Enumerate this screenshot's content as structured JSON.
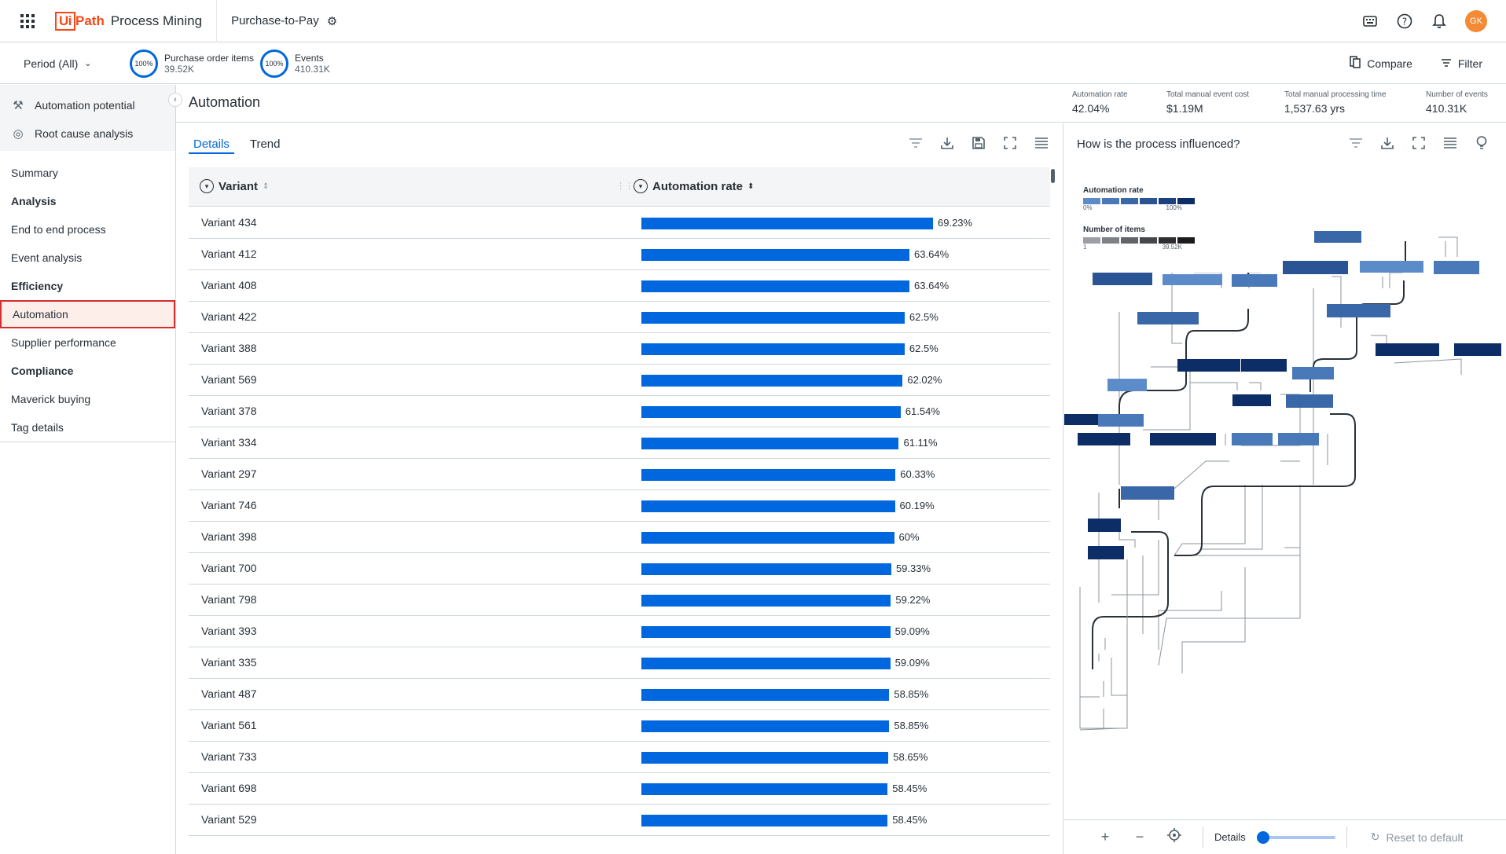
{
  "topbar": {
    "logo_ui": "Ui",
    "logo_path": "Path",
    "product": "Process Mining",
    "app_name": "Purchase-to-Pay",
    "avatar_initials": "GK"
  },
  "filterbar": {
    "period_label": "Period (All)",
    "metrics": [
      {
        "pct": "100%",
        "label": "Purchase order items",
        "value": "39.52K"
      },
      {
        "pct": "100%",
        "label": "Events",
        "value": "410.31K"
      }
    ],
    "compare_label": "Compare",
    "filter_label": "Filter"
  },
  "leftnav": {
    "top_items": [
      {
        "label": "Automation potential",
        "icon": "lever-icon"
      },
      {
        "label": "Root cause analysis",
        "icon": "target-icon"
      }
    ],
    "items": [
      {
        "label": "Summary",
        "type": "link"
      },
      {
        "label": "Analysis",
        "type": "head"
      },
      {
        "label": "End to end process",
        "type": "link"
      },
      {
        "label": "Event analysis",
        "type": "link"
      },
      {
        "label": "Efficiency",
        "type": "head"
      },
      {
        "label": "Automation",
        "type": "link",
        "active": true
      },
      {
        "label": "Supplier performance",
        "type": "link"
      },
      {
        "label": "Compliance",
        "type": "head"
      },
      {
        "label": "Maverick buying",
        "type": "link"
      },
      {
        "label": "Tag details",
        "type": "link"
      }
    ]
  },
  "page": {
    "title": "Automation",
    "kpis": [
      {
        "label": "Automation rate",
        "value": "42.04%"
      },
      {
        "label": "Total manual event cost",
        "value": "$1.19M"
      },
      {
        "label": "Total manual processing time",
        "value": "1,537.63 yrs"
      },
      {
        "label": "Number of events",
        "value": "410.31K"
      }
    ]
  },
  "table": {
    "tabs": [
      "Details",
      "Trend"
    ],
    "columns": [
      "Variant",
      "Automation rate"
    ],
    "rows": [
      {
        "name": "Variant 434",
        "rate": 69.23,
        "label": "69.23%"
      },
      {
        "name": "Variant 412",
        "rate": 63.64,
        "label": "63.64%"
      },
      {
        "name": "Variant 408",
        "rate": 63.64,
        "label": "63.64%"
      },
      {
        "name": "Variant 422",
        "rate": 62.5,
        "label": "62.5%"
      },
      {
        "name": "Variant 388",
        "rate": 62.5,
        "label": "62.5%"
      },
      {
        "name": "Variant 569",
        "rate": 62.02,
        "label": "62.02%"
      },
      {
        "name": "Variant 378",
        "rate": 61.54,
        "label": "61.54%"
      },
      {
        "name": "Variant 334",
        "rate": 61.11,
        "label": "61.11%"
      },
      {
        "name": "Variant 297",
        "rate": 60.33,
        "label": "60.33%"
      },
      {
        "name": "Variant 746",
        "rate": 60.19,
        "label": "60.19%"
      },
      {
        "name": "Variant 398",
        "rate": 60,
        "label": "60%"
      },
      {
        "name": "Variant 700",
        "rate": 59.33,
        "label": "59.33%"
      },
      {
        "name": "Variant 798",
        "rate": 59.22,
        "label": "59.22%"
      },
      {
        "name": "Variant 393",
        "rate": 59.09,
        "label": "59.09%"
      },
      {
        "name": "Variant 335",
        "rate": 59.09,
        "label": "59.09%"
      },
      {
        "name": "Variant 487",
        "rate": 58.85,
        "label": "58.85%"
      },
      {
        "name": "Variant 561",
        "rate": 58.85,
        "label": "58.85%"
      },
      {
        "name": "Variant 733",
        "rate": 58.65,
        "label": "58.65%"
      },
      {
        "name": "Variant 698",
        "rate": 58.45,
        "label": "58.45%"
      },
      {
        "name": "Variant 529",
        "rate": 58.45,
        "label": "58.45%"
      }
    ]
  },
  "influence": {
    "title": "How is the process influenced?",
    "legend_rate_title": "Automation rate",
    "legend_rate_min": "0%",
    "legend_rate_max": "100%",
    "legend_items_title": "Number of items",
    "legend_items_min": "1",
    "legend_items_max": "39.52K",
    "rate_colors": [
      "#5b8bc9",
      "#4a79b9",
      "#3a67a8",
      "#2a5494",
      "#1a4080",
      "#0c2d66"
    ],
    "item_colors": [
      "#9aa0a6",
      "#7d8287",
      "#616569",
      "#45484b",
      "#2c2e30",
      "#1a1b1c"
    ],
    "footer_details": "Details",
    "footer_reset": "Reset to default"
  }
}
